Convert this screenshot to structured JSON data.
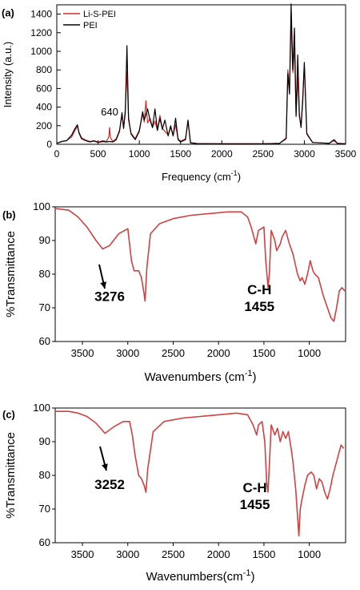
{
  "panels": [
    {
      "letter": "(a)",
      "chart_data": {
        "type": "line",
        "xlabel": "Frequency (cm",
        "xlabel_sup": "-1",
        "xlabel_close": ")",
        "ylabel": "Intensity (a.u.)",
        "xlim": [
          0,
          3500
        ],
        "ylim": [
          0,
          1500
        ],
        "xticks": [
          0,
          500,
          1000,
          1500,
          2000,
          2500,
          3000,
          3500
        ],
        "yticks": [
          0,
          200,
          400,
          600,
          800,
          1000,
          1200,
          1400
        ],
        "legend_position": "top-left",
        "annotations": [
          {
            "text": "640",
            "x": 640,
            "y": 310
          }
        ],
        "series": [
          {
            "name": "Li-S-PEI",
            "color": "#d62728",
            "x": [
              0,
              60,
              120,
              180,
              220,
              250,
              270,
              300,
              350,
              400,
              450,
              500,
              560,
              600,
              630,
              640,
              650,
              680,
              720,
              760,
              790,
              810,
              830,
              850,
              870,
              900,
              950,
              1000,
              1040,
              1060,
              1080,
              1100,
              1130,
              1160,
              1190,
              1220,
              1250,
              1280,
              1310,
              1350,
              1380,
              1410,
              1440,
              1470,
              1500,
              1560,
              1590,
              1620,
              1700,
              2000,
              2500,
              2700,
              2780,
              2800,
              2820,
              2840,
              2860,
              2880,
              2900,
              2920,
              2940,
              2960,
              2980,
              3000,
              3030,
              3100,
              3300,
              3360,
              3400,
              3500
            ],
            "y": [
              10,
              30,
              40,
              80,
              150,
              190,
              130,
              70,
              45,
              30,
              40,
              25,
              40,
              30,
              80,
              180,
              70,
              30,
              60,
              150,
              310,
              180,
              380,
              780,
              260,
              120,
              60,
              150,
              330,
              240,
              470,
              230,
              280,
              180,
              250,
              150,
              310,
              170,
              140,
              100,
              180,
              100,
              210,
              60,
              30,
              60,
              250,
              20,
              8,
              5,
              5,
              10,
              70,
              800,
              580,
              1350,
              770,
              1050,
              320,
              720,
              300,
              200,
              500,
              860,
              120,
              20,
              10,
              40,
              10,
              5
            ]
          },
          {
            "name": "PEI",
            "color": "#000000",
            "x": [
              0,
              60,
              120,
              180,
              220,
              250,
              270,
              300,
              350,
              400,
              450,
              500,
              560,
              600,
              640,
              680,
              720,
              760,
              790,
              810,
              830,
              850,
              870,
              900,
              950,
              1000,
              1040,
              1060,
              1080,
              1100,
              1130,
              1160,
              1190,
              1220,
              1250,
              1280,
              1310,
              1350,
              1380,
              1410,
              1440,
              1470,
              1500,
              1560,
              1590,
              1620,
              1700,
              2000,
              2500,
              2700,
              2780,
              2800,
              2820,
              2840,
              2860,
              2880,
              2900,
              2920,
              2940,
              2960,
              2980,
              3000,
              3030,
              3100,
              3300,
              3360,
              3400,
              3500
            ],
            "y": [
              10,
              30,
              40,
              100,
              170,
              210,
              120,
              60,
              40,
              25,
              35,
              20,
              30,
              25,
              30,
              25,
              50,
              140,
              340,
              170,
              340,
              1060,
              280,
              110,
              50,
              140,
              350,
              260,
              320,
              380,
              260,
              180,
              380,
              150,
              280,
              160,
              260,
              90,
              200,
              90,
              280,
              50,
              25,
              50,
              260,
              15,
              8,
              5,
              5,
              10,
              60,
              760,
              540,
              1510,
              800,
              1250,
              300,
              960,
              320,
              180,
              460,
              880,
              110,
              20,
              10,
              50,
              10,
              5
            ]
          }
        ]
      }
    },
    {
      "letter": "(b)",
      "chart_data": {
        "type": "line",
        "xlabel": "Wavenumbers (cm",
        "xlabel_sup": "-1",
        "xlabel_close": ")",
        "ylabel": "%Transmittance",
        "xlim": [
          3800,
          600
        ],
        "ylim": [
          60,
          100
        ],
        "xticks": [
          3500,
          3000,
          2500,
          2000,
          1500,
          1000
        ],
        "yticks": [
          60,
          70,
          80,
          90,
          100
        ],
        "annotations": [
          {
            "text": "3276",
            "x": 3200,
            "y": 72
          },
          {
            "text": "C-H",
            "x": 1550,
            "y": 74
          },
          {
            "text": "1455",
            "x": 1550,
            "y": 69
          }
        ],
        "series": [
          {
            "name": "",
            "color": "#d24141",
            "x": [
              3800,
              3650,
              3550,
              3450,
              3350,
              3276,
              3200,
              3100,
              3000,
              2960,
              2930,
              2880,
              2850,
              2820,
              2810,
              2790,
              2750,
              2650,
              2500,
              2300,
              2100,
              1900,
              1750,
              1680,
              1640,
              1600,
              1590,
              1560,
              1500,
              1480,
              1460,
              1455,
              1440,
              1420,
              1380,
              1360,
              1320,
              1300,
              1260,
              1220,
              1180,
              1130,
              1100,
              1080,
              1050,
              1020,
              990,
              960,
              940,
              900,
              850,
              800,
              760,
              730,
              700,
              670,
              640,
              610
            ],
            "y": [
              99.5,
              99,
              97,
              94,
              90,
              87.5,
              88.5,
              92,
              93.5,
              84,
              81,
              81,
              79,
              74,
              72,
              82,
              92,
              95,
              96.5,
              97.5,
              98,
              98.5,
              98.5,
              97,
              94,
              90,
              89,
              93,
              94,
              84,
              78,
              76,
              80,
              93,
              90,
              87,
              89,
              91,
              93,
              89,
              86,
              80,
              78,
              79,
              77,
              80,
              84,
              81,
              80,
              79,
              74,
              70,
              67,
              66,
              70,
              75,
              76,
              75
            ]
          }
        ]
      }
    },
    {
      "letter": "(c)",
      "chart_data": {
        "type": "line",
        "xlabel": "Wavenumbers(cm",
        "xlabel_sup": "-1",
        "xlabel_close": ")",
        "ylabel": "%Transmittance",
        "xlim": [
          3800,
          600
        ],
        "ylim": [
          60,
          100
        ],
        "xticks": [
          3500,
          3000,
          2500,
          2000,
          1500,
          1000
        ],
        "yticks": [
          60,
          70,
          80,
          90,
          100
        ],
        "annotations": [
          {
            "text": "3252",
            "x": 3200,
            "y": 76
          },
          {
            "text": "C-H",
            "x": 1600,
            "y": 75
          },
          {
            "text": "1455",
            "x": 1600,
            "y": 70
          }
        ],
        "series": [
          {
            "name": "",
            "color": "#d24141",
            "x": [
              3800,
              3650,
              3550,
              3450,
              3350,
              3252,
              3150,
              3050,
              2980,
              2950,
              2920,
              2880,
              2850,
              2820,
              2800,
              2780,
              2720,
              2600,
              2400,
              2200,
              2000,
              1800,
              1680,
              1620,
              1580,
              1560,
              1520,
              1490,
              1470,
              1455,
              1440,
              1420,
              1380,
              1350,
              1320,
              1290,
              1260,
              1230,
              1200,
              1180,
              1150,
              1130,
              1115,
              1100,
              1080,
              1050,
              1020,
              980,
              950,
              920,
              890,
              860,
              830,
              800,
              770,
              740,
              710,
              680,
              650,
              620
            ],
            "y": [
              99,
              99,
              98.5,
              97.5,
              95.5,
              92.5,
              94.5,
              96,
              96,
              92,
              86,
              80,
              79,
              77,
              75,
              82,
              93,
              96,
              97,
              97.5,
              98,
              98.5,
              98,
              95,
              92,
              95,
              96,
              90,
              78,
              75,
              83,
              95,
              92,
              94,
              90,
              93,
              91,
              93,
              88,
              84,
              76,
              68,
              62,
              70,
              73,
              77,
              80,
              81,
              80,
              76,
              79,
              78,
              75,
              73,
              76,
              80,
              83,
              86,
              89,
              88
            ]
          }
        ]
      }
    }
  ]
}
